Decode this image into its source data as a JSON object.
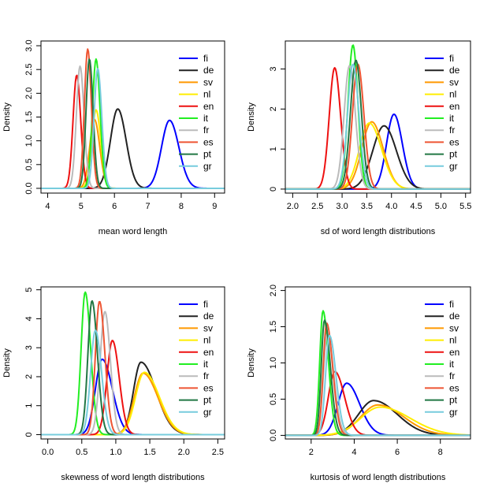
{
  "chart_data": [
    {
      "type": "line",
      "xlabel": "mean word length",
      "ylabel": "Density",
      "xlim": [
        3.8,
        9.3
      ],
      "ylim": [
        -0.1,
        3.1
      ],
      "xticks": [
        4,
        5,
        6,
        7,
        8,
        9
      ],
      "yticks": [
        0.0,
        0.5,
        1.0,
        1.5,
        2.0,
        2.5,
        3.0
      ],
      "ytick_labels": [
        "0.0",
        "0.5",
        "1.0",
        "1.5",
        "2.0",
        "2.5",
        "3.0"
      ],
      "legend": "top-right",
      "series": [
        {
          "name": "fi",
          "color": "#0000ff",
          "peak_x": 7.65,
          "peak_y": 1.43,
          "sigma_left": 0.24,
          "sigma_right": 0.28
        },
        {
          "name": "de",
          "color": "#222222",
          "peak_x": 6.1,
          "peak_y": 1.67,
          "sigma_left": 0.22,
          "sigma_right": 0.25
        },
        {
          "name": "sv",
          "color": "#ff9900",
          "peak_x": 5.4,
          "peak_y": 1.45,
          "sigma_left": 0.14,
          "sigma_right": 0.16
        },
        {
          "name": "nl",
          "color": "#ffee00",
          "peak_x": 5.45,
          "peak_y": 1.65,
          "sigma_left": 0.13,
          "sigma_right": 0.14
        },
        {
          "name": "en",
          "color": "#ee1111",
          "peak_x": 4.87,
          "peak_y": 2.38,
          "sigma_left": 0.11,
          "sigma_right": 0.12
        },
        {
          "name": "it",
          "color": "#22ee22",
          "peak_x": 5.45,
          "peak_y": 2.72,
          "sigma_left": 0.11,
          "sigma_right": 0.12
        },
        {
          "name": "fr",
          "color": "#bbbbbb",
          "peak_x": 4.97,
          "peak_y": 2.57,
          "sigma_left": 0.11,
          "sigma_right": 0.12
        },
        {
          "name": "es",
          "color": "#ee5533",
          "peak_x": 5.2,
          "peak_y": 2.93,
          "sigma_left": 0.1,
          "sigma_right": 0.11
        },
        {
          "name": "pt",
          "color": "#227744",
          "peak_x": 5.25,
          "peak_y": 2.72,
          "sigma_left": 0.1,
          "sigma_right": 0.11
        },
        {
          "name": "gr",
          "color": "#77ccdd",
          "peak_x": 5.5,
          "peak_y": 2.52,
          "sigma_left": 0.11,
          "sigma_right": 0.12
        }
      ]
    },
    {
      "type": "line",
      "xlabel": "sd of word length distributions",
      "ylabel": "Density",
      "xlim": [
        1.85,
        5.6
      ],
      "ylim": [
        -0.1,
        3.7
      ],
      "xticks": [
        2.0,
        2.5,
        3.0,
        3.5,
        4.0,
        4.5,
        5.0,
        5.5
      ],
      "xtick_labels": [
        "2.0",
        "2.5",
        "3.0",
        "3.5",
        "4.0",
        "4.5",
        "5.0",
        "5.5"
      ],
      "yticks": [
        0,
        1,
        2,
        3
      ],
      "legend": "top-right",
      "series": [
        {
          "name": "fi",
          "color": "#0000ff",
          "peak_x": 4.05,
          "peak_y": 1.87,
          "sigma_left": 0.15,
          "sigma_right": 0.17
        },
        {
          "name": "de",
          "color": "#222222",
          "peak_x": 3.85,
          "peak_y": 1.58,
          "sigma_left": 0.23,
          "sigma_right": 0.25
        },
        {
          "name": "sv",
          "color": "#ff9900",
          "peak_x": 3.6,
          "peak_y": 1.68,
          "sigma_left": 0.2,
          "sigma_right": 0.23
        },
        {
          "name": "nl",
          "color": "#ffee00",
          "peak_x": 3.55,
          "peak_y": 1.65,
          "sigma_left": 0.2,
          "sigma_right": 0.25
        },
        {
          "name": "en",
          "color": "#ee1111",
          "peak_x": 2.85,
          "peak_y": 3.03,
          "sigma_left": 0.11,
          "sigma_right": 0.12
        },
        {
          "name": "it",
          "color": "#22ee22",
          "peak_x": 3.22,
          "peak_y": 3.6,
          "sigma_left": 0.1,
          "sigma_right": 0.1
        },
        {
          "name": "fr",
          "color": "#bbbbbb",
          "peak_x": 3.15,
          "peak_y": 3.08,
          "sigma_left": 0.11,
          "sigma_right": 0.12
        },
        {
          "name": "es",
          "color": "#ee5533",
          "peak_x": 3.32,
          "peak_y": 3.12,
          "sigma_left": 0.11,
          "sigma_right": 0.12
        },
        {
          "name": "pt",
          "color": "#227744",
          "peak_x": 3.28,
          "peak_y": 3.22,
          "sigma_left": 0.11,
          "sigma_right": 0.11
        },
        {
          "name": "gr",
          "color": "#77ccdd",
          "peak_x": 3.22,
          "peak_y": 3.12,
          "sigma_left": 0.11,
          "sigma_right": 0.12
        }
      ]
    },
    {
      "type": "line",
      "xlabel": "skewness of word length distributions",
      "ylabel": "Density",
      "xlim": [
        -0.1,
        2.6
      ],
      "ylim": [
        -0.15,
        5.1
      ],
      "xticks": [
        0.0,
        0.5,
        1.0,
        1.5,
        2.0,
        2.5
      ],
      "xtick_labels": [
        "0.0",
        "0.5",
        "1.0",
        "1.5",
        "2.0",
        "2.5"
      ],
      "yticks": [
        0,
        1,
        2,
        3,
        4,
        5
      ],
      "legend": "top-right",
      "series": [
        {
          "name": "fi",
          "color": "#0000ff",
          "peak_x": 0.8,
          "peak_y": 2.6,
          "sigma_left": 0.1,
          "sigma_right": 0.15
        },
        {
          "name": "de",
          "color": "#222222",
          "peak_x": 1.37,
          "peak_y": 2.5,
          "sigma_left": 0.11,
          "sigma_right": 0.22
        },
        {
          "name": "sv",
          "color": "#ff9900",
          "peak_x": 1.4,
          "peak_y": 2.12,
          "sigma_left": 0.13,
          "sigma_right": 0.22
        },
        {
          "name": "nl",
          "color": "#ffee00",
          "peak_x": 1.42,
          "peak_y": 2.15,
          "sigma_left": 0.13,
          "sigma_right": 0.22
        },
        {
          "name": "en",
          "color": "#ee1111",
          "peak_x": 0.95,
          "peak_y": 3.25,
          "sigma_left": 0.08,
          "sigma_right": 0.1
        },
        {
          "name": "it",
          "color": "#22ee22",
          "peak_x": 0.55,
          "peak_y": 4.92,
          "sigma_left": 0.06,
          "sigma_right": 0.08
        },
        {
          "name": "fr",
          "color": "#bbbbbb",
          "peak_x": 0.84,
          "peak_y": 4.25,
          "sigma_left": 0.07,
          "sigma_right": 0.08
        },
        {
          "name": "es",
          "color": "#ee5533",
          "peak_x": 0.76,
          "peak_y": 4.6,
          "sigma_left": 0.06,
          "sigma_right": 0.08
        },
        {
          "name": "pt",
          "color": "#227744",
          "peak_x": 0.65,
          "peak_y": 4.62,
          "sigma_left": 0.06,
          "sigma_right": 0.08
        },
        {
          "name": "gr",
          "color": "#77ccdd",
          "peak_x": 0.7,
          "peak_y": 3.6,
          "sigma_left": 0.07,
          "sigma_right": 0.09
        }
      ]
    },
    {
      "type": "line",
      "xlabel": "kurtosis of word length distributions",
      "ylabel": "Density",
      "xlim": [
        0.8,
        9.4
      ],
      "ylim": [
        -0.05,
        2.05
      ],
      "xticks": [
        2,
        4,
        6,
        8
      ],
      "yticks": [
        0.0,
        0.5,
        1.0,
        1.5,
        2.0
      ],
      "ytick_labels": [
        "0.0",
        "0.5",
        "1.0",
        "1.5",
        "2.0"
      ],
      "legend": "top-right",
      "series": [
        {
          "name": "fi",
          "color": "#0000ff",
          "peak_x": 3.65,
          "peak_y": 0.72,
          "sigma_left": 0.4,
          "sigma_right": 0.6
        },
        {
          "name": "de",
          "color": "#222222",
          "peak_x": 4.9,
          "peak_y": 0.48,
          "sigma_left": 0.7,
          "sigma_right": 1.1
        },
        {
          "name": "sv",
          "color": "#ff9900",
          "peak_x": 5.1,
          "peak_y": 0.42,
          "sigma_left": 0.8,
          "sigma_right": 1.2
        },
        {
          "name": "nl",
          "color": "#ffee00",
          "peak_x": 5.2,
          "peak_y": 0.39,
          "sigma_left": 0.9,
          "sigma_right": 1.4
        },
        {
          "name": "en",
          "color": "#ee1111",
          "peak_x": 3.1,
          "peak_y": 0.88,
          "sigma_left": 0.3,
          "sigma_right": 0.45
        },
        {
          "name": "it",
          "color": "#22ee22",
          "peak_x": 2.55,
          "peak_y": 1.72,
          "sigma_left": 0.15,
          "sigma_right": 0.25
        },
        {
          "name": "fr",
          "color": "#bbbbbb",
          "peak_x": 2.75,
          "peak_y": 1.4,
          "sigma_left": 0.18,
          "sigma_right": 0.3
        },
        {
          "name": "es",
          "color": "#ee5533",
          "peak_x": 2.72,
          "peak_y": 1.55,
          "sigma_left": 0.16,
          "sigma_right": 0.28
        },
        {
          "name": "pt",
          "color": "#227744",
          "peak_x": 2.62,
          "peak_y": 1.59,
          "sigma_left": 0.15,
          "sigma_right": 0.27
        },
        {
          "name": "gr",
          "color": "#77ccdd",
          "peak_x": 2.85,
          "peak_y": 1.38,
          "sigma_left": 0.18,
          "sigma_right": 0.3
        }
      ]
    }
  ]
}
